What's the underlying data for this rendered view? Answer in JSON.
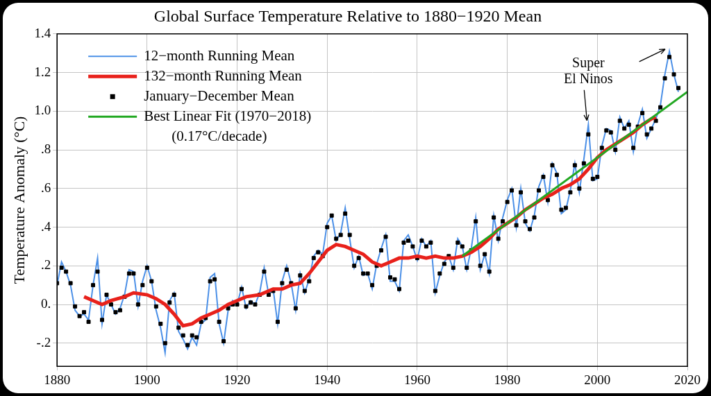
{
  "chart_data": {
    "type": "line",
    "title": "Global Surface Temperature Relative to 1880−1920 Mean",
    "y_label": "Temperature Anomaly (°C)",
    "xlim": [
      1880,
      2020
    ],
    "xticks": [
      1880,
      1900,
      1920,
      1940,
      1960,
      1980,
      2000,
      2020
    ],
    "ylim": [
      -0.32,
      1.4
    ],
    "yticks": [
      {
        "value": -0.2,
        "label": "-.2"
      },
      {
        "value": 0,
        "label": "0."
      },
      {
        "value": 0.2,
        "label": ".2"
      },
      {
        "value": 0.4,
        "label": ".4"
      },
      {
        "value": 0.6,
        "label": ".6"
      },
      {
        "value": 0.8,
        "label": ".8"
      },
      {
        "value": 1.0,
        "label": "1.0"
      },
      {
        "value": 1.2,
        "label": "1.2"
      },
      {
        "value": 1.4,
        "label": "1.4"
      }
    ],
    "grid": true,
    "legend": "upper left",
    "x": [
      1880,
      1881,
      1882,
      1883,
      1884,
      1885,
      1886,
      1887,
      1888,
      1889,
      1890,
      1891,
      1892,
      1893,
      1894,
      1895,
      1896,
      1897,
      1898,
      1899,
      1900,
      1901,
      1902,
      1903,
      1904,
      1905,
      1906,
      1907,
      1908,
      1909,
      1910,
      1911,
      1912,
      1913,
      1914,
      1915,
      1916,
      1917,
      1918,
      1919,
      1920,
      1921,
      1922,
      1923,
      1924,
      1925,
      1926,
      1927,
      1928,
      1929,
      1930,
      1931,
      1932,
      1933,
      1934,
      1935,
      1936,
      1937,
      1938,
      1939,
      1940,
      1941,
      1942,
      1943,
      1944,
      1945,
      1946,
      1947,
      1948,
      1949,
      1950,
      1951,
      1952,
      1953,
      1954,
      1955,
      1956,
      1957,
      1958,
      1959,
      1960,
      1961,
      1962,
      1963,
      1964,
      1965,
      1966,
      1967,
      1968,
      1969,
      1970,
      1971,
      1972,
      1973,
      1974,
      1975,
      1976,
      1977,
      1978,
      1979,
      1980,
      1981,
      1982,
      1983,
      1984,
      1985,
      1986,
      1987,
      1988,
      1989,
      1990,
      1991,
      1992,
      1993,
      1994,
      1995,
      1996,
      1997,
      1998,
      1999,
      2000,
      2001,
      2002,
      2003,
      2004,
      2005,
      2006,
      2007,
      2008,
      2009,
      2010,
      2011,
      2012,
      2013,
      2014,
      2015,
      2016,
      2017,
      2018
    ],
    "series": [
      {
        "name": "12−month Running Mean",
        "color": "#4a8fe7",
        "type": "line",
        "marker": "none",
        "line_style": "solid",
        "values": [
          0.1,
          0.22,
          0.17,
          0.1,
          -0.03,
          -0.06,
          -0.05,
          -0.08,
          0.1,
          0.24,
          -0.1,
          0.05,
          0.0,
          -0.05,
          -0.02,
          0.05,
          0.18,
          0.17,
          -0.01,
          0.12,
          0.2,
          0.12,
          -0.03,
          -0.12,
          -0.25,
          0.02,
          0.06,
          -0.14,
          -0.18,
          -0.23,
          -0.17,
          -0.21,
          -0.1,
          -0.08,
          0.14,
          0.16,
          -0.1,
          -0.2,
          -0.03,
          0.02,
          0.0,
          0.09,
          -0.02,
          0.02,
          0.0,
          0.06,
          0.19,
          0.05,
          0.08,
          -0.1,
          0.12,
          0.2,
          0.11,
          -0.03,
          0.16,
          0.06,
          0.13,
          0.25,
          0.28,
          0.26,
          0.42,
          0.46,
          0.33,
          0.37,
          0.5,
          0.34,
          0.19,
          0.25,
          0.15,
          0.16,
          0.08,
          0.21,
          0.29,
          0.36,
          0.12,
          0.12,
          0.07,
          0.33,
          0.36,
          0.3,
          0.23,
          0.34,
          0.3,
          0.33,
          0.06,
          0.15,
          0.22,
          0.25,
          0.18,
          0.34,
          0.3,
          0.18,
          0.29,
          0.45,
          0.18,
          0.26,
          0.16,
          0.46,
          0.33,
          0.45,
          0.54,
          0.6,
          0.4,
          0.6,
          0.42,
          0.38,
          0.46,
          0.61,
          0.67,
          0.53,
          0.73,
          0.68,
          0.47,
          0.49,
          0.59,
          0.73,
          0.58,
          0.75,
          0.93,
          0.64,
          0.65,
          0.82,
          0.91,
          0.9,
          0.79,
          0.97,
          0.91,
          0.95,
          0.79,
          0.93,
          1.01,
          0.86,
          0.91,
          0.96,
          1.03,
          1.19,
          1.31,
          1.19,
          1.1
        ]
      },
      {
        "name": "132−month Running Mean",
        "color": "#e8211b",
        "type": "line",
        "marker": "none",
        "line_style": "solid",
        "x": [
          1886,
          1888,
          1890,
          1892,
          1895,
          1897,
          1900,
          1902,
          1904,
          1906,
          1908,
          1910,
          1912,
          1914,
          1916,
          1918,
          1920,
          1922,
          1925,
          1928,
          1930,
          1932,
          1934,
          1936,
          1938,
          1940,
          1942,
          1944,
          1946,
          1948,
          1950,
          1952,
          1954,
          1956,
          1958,
          1960,
          1962,
          1964,
          1966,
          1968,
          1970,
          1972,
          1974,
          1976,
          1978,
          1980,
          1982,
          1984,
          1986,
          1988,
          1990,
          1992,
          1994,
          1996,
          1998,
          2000,
          2002,
          2004,
          2006,
          2008,
          2010,
          2012,
          2013
        ],
        "values": [
          0.04,
          0.02,
          0.0,
          0.02,
          0.04,
          0.06,
          0.05,
          0.03,
          0.0,
          -0.05,
          -0.11,
          -0.1,
          -0.07,
          -0.05,
          -0.03,
          0.0,
          0.02,
          0.04,
          0.05,
          0.08,
          0.08,
          0.1,
          0.11,
          0.16,
          0.22,
          0.28,
          0.31,
          0.3,
          0.28,
          0.26,
          0.22,
          0.2,
          0.22,
          0.24,
          0.24,
          0.25,
          0.24,
          0.25,
          0.24,
          0.24,
          0.25,
          0.27,
          0.3,
          0.34,
          0.39,
          0.42,
          0.45,
          0.49,
          0.52,
          0.55,
          0.57,
          0.6,
          0.62,
          0.65,
          0.7,
          0.76,
          0.8,
          0.83,
          0.86,
          0.89,
          0.93,
          0.96,
          0.97
        ]
      },
      {
        "name": "January−December Mean",
        "color": "#000000",
        "type": "scatter",
        "marker": "square",
        "values": [
          0.11,
          0.19,
          0.17,
          0.11,
          -0.01,
          -0.06,
          -0.04,
          -0.09,
          0.1,
          0.17,
          -0.08,
          0.05,
          0.0,
          -0.04,
          -0.03,
          0.04,
          0.16,
          0.16,
          0.0,
          0.1,
          0.19,
          0.12,
          -0.01,
          -0.1,
          -0.2,
          0.01,
          0.05,
          -0.12,
          -0.16,
          -0.21,
          -0.16,
          -0.17,
          -0.09,
          -0.07,
          0.12,
          0.13,
          -0.09,
          -0.19,
          -0.02,
          0.0,
          0.0,
          0.08,
          -0.01,
          0.01,
          0.0,
          0.05,
          0.17,
          0.05,
          0.07,
          -0.09,
          0.11,
          0.18,
          0.11,
          -0.02,
          0.15,
          0.07,
          0.12,
          0.24,
          0.27,
          0.25,
          0.4,
          0.46,
          0.34,
          0.36,
          0.47,
          0.36,
          0.2,
          0.24,
          0.16,
          0.16,
          0.1,
          0.2,
          0.28,
          0.35,
          0.14,
          0.13,
          0.08,
          0.32,
          0.33,
          0.3,
          0.24,
          0.33,
          0.3,
          0.32,
          0.07,
          0.16,
          0.21,
          0.25,
          0.19,
          0.32,
          0.3,
          0.19,
          0.28,
          0.43,
          0.2,
          0.26,
          0.17,
          0.45,
          0.34,
          0.43,
          0.53,
          0.59,
          0.41,
          0.58,
          0.43,
          0.39,
          0.45,
          0.59,
          0.66,
          0.54,
          0.72,
          0.67,
          0.49,
          0.5,
          0.58,
          0.72,
          0.6,
          0.73,
          0.88,
          0.65,
          0.66,
          0.81,
          0.9,
          0.89,
          0.8,
          0.95,
          0.91,
          0.93,
          0.81,
          0.92,
          0.99,
          0.88,
          0.91,
          0.95,
          1.02,
          1.17,
          1.28,
          1.19,
          1.12
        ]
      },
      {
        "name": "Best Linear Fit (1970−2018)",
        "color": "#22a822",
        "type": "line",
        "marker": "none",
        "line_style": "solid",
        "x": [
          1970,
          2020
        ],
        "values": [
          0.25,
          1.1
        ]
      }
    ],
    "annotations": [
      {
        "text": [
          "(0.17°C/decade)"
        ]
      },
      {
        "text": [
          "Super",
          "El Ninos"
        ],
        "arrow_years": [
          1998,
          2016
        ]
      }
    ]
  }
}
